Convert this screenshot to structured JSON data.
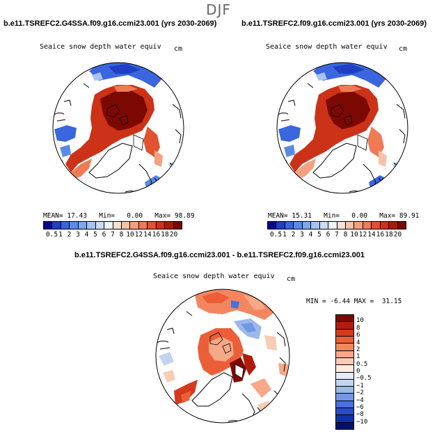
{
  "season": "DJF",
  "panels": [
    {
      "title": "b.e11.TSREFC2.G4SSA.f09.g16.ccmi23.001 (yrs 2030-2069)",
      "variable": "Seaice snow depth water equiv",
      "units": "cm",
      "stats": {
        "mean": "17.43",
        "min": "0.00",
        "max": "98.89"
      }
    },
    {
      "title": "b.e11.TSREFC2.f09.g16.ccmi23.001 (yrs 2030-2069)",
      "variable": "Seaice snow depth water equiv",
      "units": "cm",
      "stats": {
        "mean": "15.31",
        "min": "0.00",
        "max": "89.91"
      }
    }
  ],
  "diff_panel": {
    "title": "b.e11.TSREFC2.G4SSA.f09.g16.ccmi23.001 - b.e11.TSREFC2.f09.g16.ccmi23.001",
    "variable": "Seaice snow depth water equiv",
    "units": "cm",
    "stats": {
      "min": "-6.44",
      "max": "31.15"
    }
  },
  "stat_labels": {
    "mean": "MEAN=",
    "min": "Min=",
    "max": "Max=",
    "min_upper": "MIN =",
    "max_upper": "MAX ="
  },
  "abs_colorbar": {
    "labels": [
      "0.5",
      "1",
      "2",
      "3",
      "4",
      "5",
      "6",
      "7",
      "8",
      "10",
      "12",
      "14",
      "16",
      "18",
      "20"
    ],
    "colors": [
      "#08088e",
      "#1f3fc4",
      "#3a66de",
      "#5b8ae6",
      "#7ea8ee",
      "#a5c4f2",
      "#cbdcf6",
      "#eef2fa",
      "#fbe0d2",
      "#f8c2a8",
      "#f4a07f",
      "#ee7b55",
      "#e2522f",
      "#cc3218",
      "#a81a0c",
      "#7c0802"
    ]
  },
  "diff_colorbar": {
    "labels": [
      "10",
      "8",
      "6",
      "4",
      "2",
      "1",
      "0.5",
      "0",
      "−0.5",
      "−1",
      "−2",
      "−4",
      "−6",
      "−8",
      "−10"
    ],
    "colors": [
      "#7c0802",
      "#b31c0c",
      "#d63a1e",
      "#ec5e38",
      "#f38660",
      "#f6a888",
      "#f9ccb5",
      "#fcebe1",
      "#e4ecf8",
      "#c2d4f1",
      "#9cb9ea",
      "#7098e3",
      "#4872d8",
      "#254ec6",
      "#1230a8",
      "#05106e"
    ]
  }
}
